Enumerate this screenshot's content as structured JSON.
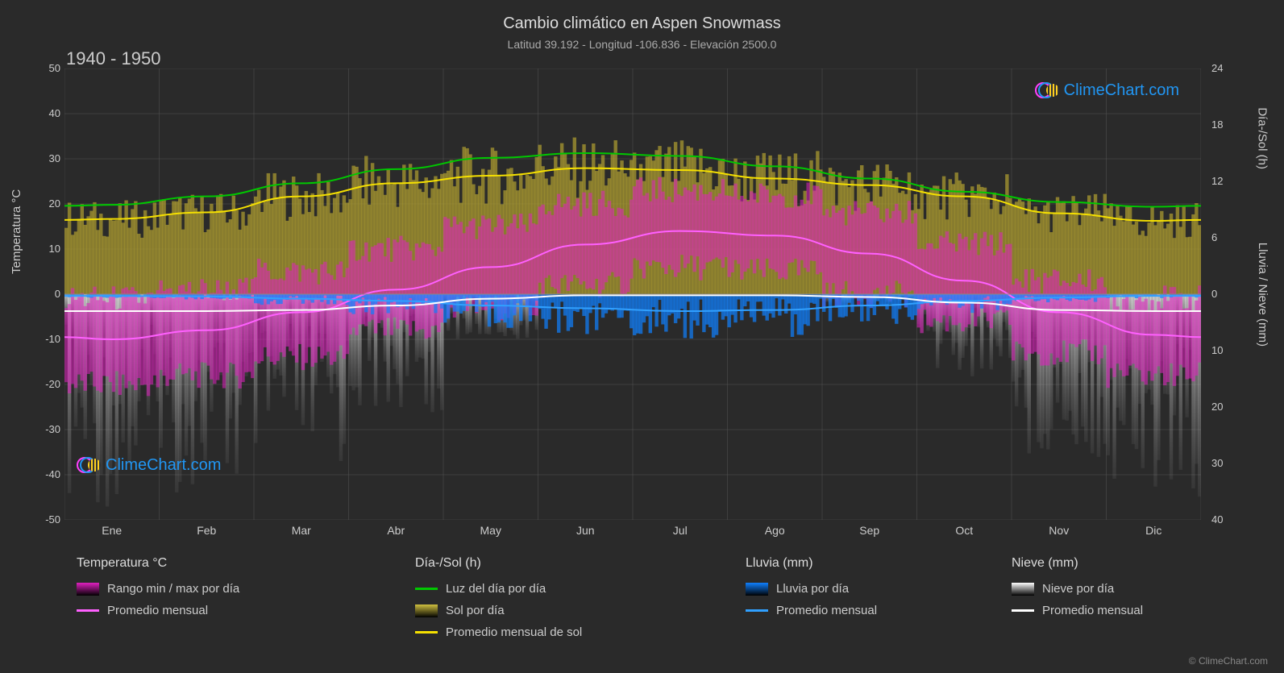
{
  "title": "Cambio climático en Aspen Snowmass",
  "subtitle": "Latitud 39.192 - Longitud -106.836 - Elevación 2500.0",
  "period": "1940 - 1950",
  "brand": "ClimeChart.com",
  "copyright": "© ClimeChart.com",
  "background_color": "#2a2a2a",
  "grid_color": "#555555",
  "text_color": "#cccccc",
  "axes": {
    "x": {
      "labels": [
        "Ene",
        "Feb",
        "Mar",
        "Abr",
        "May",
        "Jun",
        "Jul",
        "Ago",
        "Sep",
        "Oct",
        "Nov",
        "Dic"
      ]
    },
    "y_left": {
      "label": "Temperatura °C",
      "min": -50,
      "max": 50,
      "step": 10,
      "ticks": [
        50,
        40,
        30,
        20,
        10,
        0,
        -10,
        -20,
        -30,
        -40,
        -50
      ]
    },
    "y_right_sun": {
      "label": "Día-/Sol (h)",
      "min": 0,
      "max": 24,
      "step": 6,
      "ticks": [
        24,
        18,
        12,
        6,
        0
      ]
    },
    "y_right_precip": {
      "label": "Lluvia / Nieve (mm)",
      "min": 0,
      "max": 40,
      "step": 10,
      "ticks": [
        0,
        10,
        20,
        30,
        40
      ]
    }
  },
  "series": {
    "daylight_line": {
      "color": "#00c800",
      "width": 2,
      "values": [
        9.5,
        10.4,
        11.8,
        13.3,
        14.5,
        15.0,
        14.7,
        13.6,
        12.3,
        10.9,
        9.8,
        9.3
      ]
    },
    "sun_avg_line": {
      "color": "#f5e000",
      "width": 2,
      "values": [
        8.0,
        8.7,
        10.4,
        11.8,
        12.6,
        13.4,
        13.2,
        12.3,
        11.6,
        10.4,
        8.6,
        7.8
      ]
    },
    "sun_daily_bars": {
      "color": "#b0a030",
      "opacity": 0.7,
      "values": [
        8.0,
        8.7,
        10.4,
        11.8,
        12.6,
        13.4,
        13.2,
        12.3,
        11.6,
        10.4,
        8.6,
        7.8
      ]
    },
    "temp_avg_line": {
      "color": "#ff60ff",
      "width": 2,
      "values": [
        -10,
        -8,
        -4,
        1,
        6,
        11,
        14,
        13,
        9,
        3,
        -4,
        -9
      ]
    },
    "temp_range": {
      "color": "#e020c0",
      "opacity": 0.55,
      "min": [
        -20,
        -18,
        -14,
        -8,
        -3,
        2,
        6,
        5,
        0,
        -6,
        -13,
        -18
      ],
      "max": [
        -1,
        1,
        5,
        10,
        15,
        20,
        23,
        22,
        18,
        11,
        3,
        -1
      ]
    },
    "rain_daily": {
      "color": "#1080ff",
      "opacity": 0.7,
      "values": [
        0.3,
        0.4,
        0.8,
        1.5,
        2.5,
        3.0,
        3.5,
        3.2,
        2.3,
        1.5,
        0.6,
        0.3
      ]
    },
    "rain_avg_line": {
      "color": "#30a0ff",
      "width": 2,
      "values": [
        0.3,
        0.4,
        0.8,
        1.2,
        2.0,
        2.5,
        3.0,
        2.8,
        2.0,
        1.2,
        0.6,
        0.3
      ]
    },
    "snow_daily": {
      "color_top": "#ffffff",
      "color_bottom": "#808080",
      "opacity": 0.6,
      "values": [
        18,
        17,
        15,
        10,
        4,
        0,
        0,
        0,
        1,
        7,
        14,
        18
      ]
    },
    "snow_avg_line": {
      "color": "#ffffff",
      "width": 2,
      "values": [
        3.0,
        3.0,
        2.8,
        2.0,
        0.8,
        0.2,
        0.2,
        0.2,
        0.5,
        1.5,
        2.8,
        3.0
      ]
    }
  },
  "legend": {
    "columns": [
      {
        "header": "Temperatura °C",
        "items": [
          {
            "type": "gradient",
            "from": "#e020c0",
            "to": "#000000",
            "label": "Rango min / max por día"
          },
          {
            "type": "line",
            "color": "#ff60ff",
            "label": "Promedio mensual"
          }
        ]
      },
      {
        "header": "Día-/Sol (h)",
        "items": [
          {
            "type": "line",
            "color": "#00c800",
            "label": "Luz del día por día"
          },
          {
            "type": "gradient",
            "from": "#d0c040",
            "to": "#000000",
            "label": "Sol por día"
          },
          {
            "type": "line",
            "color": "#f5e000",
            "label": "Promedio mensual de sol"
          }
        ]
      },
      {
        "header": "Lluvia (mm)",
        "items": [
          {
            "type": "gradient",
            "from": "#1080ff",
            "to": "#000000",
            "label": "Lluvia por día"
          },
          {
            "type": "line",
            "color": "#30a0ff",
            "label": "Promedio mensual"
          }
        ]
      },
      {
        "header": "Nieve (mm)",
        "items": [
          {
            "type": "gradient",
            "from": "#ffffff",
            "to": "#000000",
            "label": "Nieve por día"
          },
          {
            "type": "line",
            "color": "#ffffff",
            "label": "Promedio mensual"
          }
        ]
      }
    ]
  },
  "legend_col_widths": [
    400,
    390,
    310,
    250
  ]
}
